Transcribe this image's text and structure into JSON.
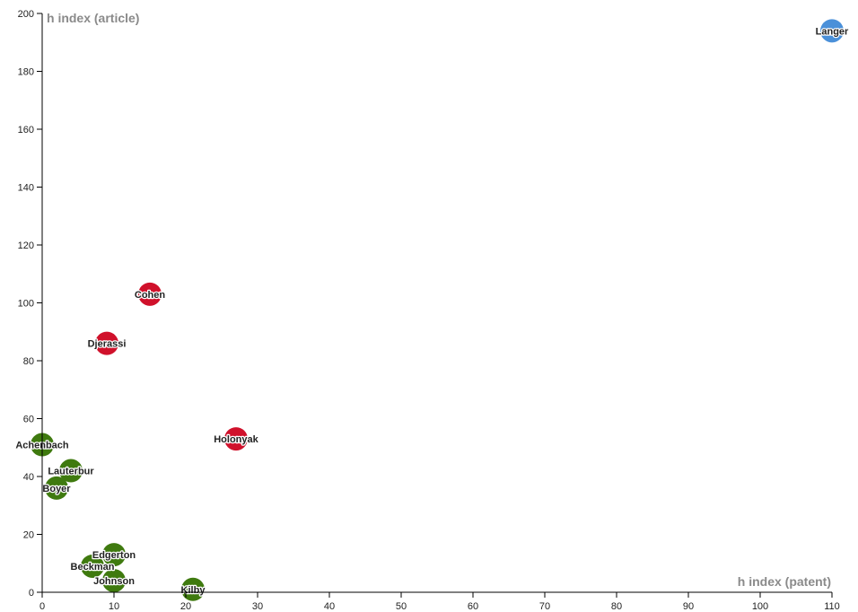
{
  "chart_data": {
    "type": "scatter",
    "title": "",
    "xlabel": "h index (patent)",
    "ylabel": "h index (article)",
    "xlim": [
      0,
      110
    ],
    "ylim": [
      0,
      200
    ],
    "x_ticks": [
      "0",
      "10",
      "20",
      "30",
      "40",
      "50",
      "60",
      "70",
      "80",
      "90",
      "100",
      "110"
    ],
    "y_ticks": [
      "0",
      "20",
      "40",
      "60",
      "80",
      "100",
      "120",
      "140",
      "160",
      "180",
      "200"
    ],
    "grid": false,
    "colors": {
      "green": "#3f7a0f",
      "red": "#d0112b",
      "blue": "#4a90d9"
    },
    "points": [
      {
        "label": "Langer",
        "x": 110,
        "y": 194,
        "color": "#4a90d9"
      },
      {
        "label": "Cohen",
        "x": 15,
        "y": 103,
        "color": "#d0112b"
      },
      {
        "label": "Djerassi",
        "x": 9,
        "y": 86,
        "color": "#d0112b"
      },
      {
        "label": "Holonyak",
        "x": 27,
        "y": 53,
        "color": "#d0112b"
      },
      {
        "label": "Achenbach",
        "x": 0,
        "y": 51,
        "color": "#3f7a0f"
      },
      {
        "label": "Lauterbur",
        "x": 4,
        "y": 42,
        "color": "#3f7a0f"
      },
      {
        "label": "Boyer",
        "x": 2,
        "y": 36,
        "color": "#3f7a0f"
      },
      {
        "label": "Edgerton",
        "x": 10,
        "y": 13,
        "color": "#3f7a0f"
      },
      {
        "label": "Beckman",
        "x": 7,
        "y": 9,
        "color": "#3f7a0f"
      },
      {
        "label": "Johnson",
        "x": 10,
        "y": 4,
        "color": "#3f7a0f"
      },
      {
        "label": "Kilby",
        "x": 21,
        "y": 1,
        "color": "#3f7a0f"
      }
    ]
  }
}
